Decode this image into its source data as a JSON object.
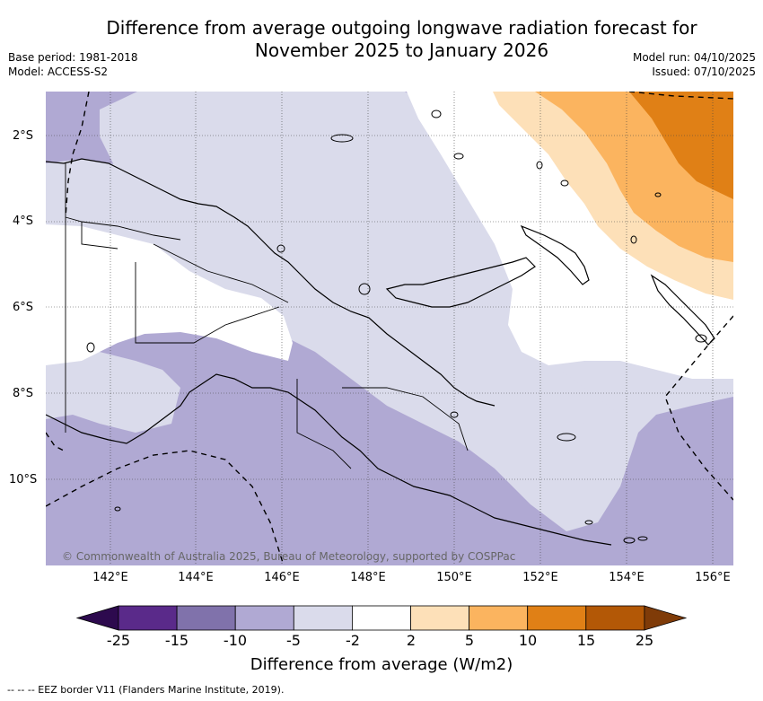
{
  "title": "Difference from average outgoing longwave radiation forecast for November 2025 to January 2026",
  "header": {
    "base_period": "Base period: 1981-2018",
    "model": "Model: ACCESS-S2",
    "model_run": "Model run: 04/10/2025",
    "issued": "Issued: 07/10/2025"
  },
  "map": {
    "lat_labels": [
      "2°S",
      "4°S",
      "6°S",
      "8°S",
      "10°S"
    ],
    "lon_labels": [
      "142°E",
      "144°E",
      "146°E",
      "148°E",
      "150°E",
      "152°E",
      "154°E",
      "156°E"
    ],
    "copyright": "© Commonwealth of Australia 2025, Bureau of Meteorology, supported by COSPPac"
  },
  "colorbar": {
    "ticks": [
      "-25",
      "-15",
      "-10",
      "-5",
      "-2",
      "2",
      "5",
      "10",
      "15",
      "25"
    ],
    "colors": [
      "#2d0a4e",
      "#5a2a8a",
      "#8072ab",
      "#b0a9d3",
      "#dadbeb",
      "#ffffff",
      "#fde0b8",
      "#fbb45f",
      "#e08016",
      "#b35806",
      "#7f3b08"
    ],
    "label": "Difference from average (W/m2)"
  },
  "footer": "--  --  -- EEZ border V11 (Flanders Marine Institute, 2019)."
}
